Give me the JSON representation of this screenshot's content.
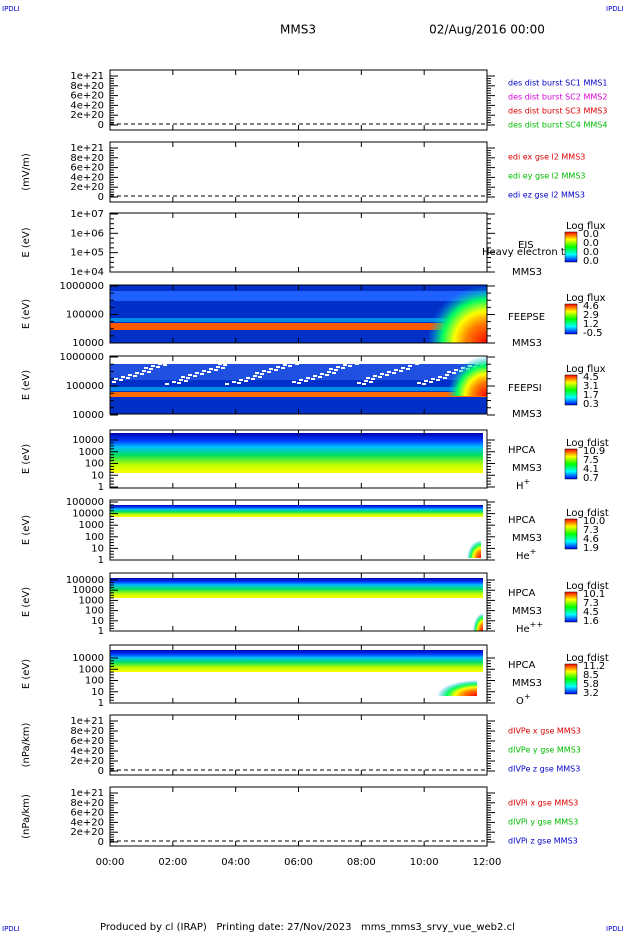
{
  "header": {
    "corner": "IPDLI",
    "satellite": "MMS3",
    "date": "02/Aug/2016 00:00"
  },
  "footer": {
    "corner": "IPDLI",
    "text": "Produced by cl (IRAP)   Printing date: 27/Nov/2023   mms_mms3_srvy_vue_web2.cl"
  },
  "xticks": [
    "00:00",
    "02:00",
    "04:00",
    "06:00",
    "08:00",
    "10:00",
    "12:00"
  ],
  "panels": [
    {
      "yticks": [
        "1e+21",
        "8e+20",
        "6e+20",
        "4e+20",
        "2e+20",
        "0"
      ],
      "legend": [
        {
          "text": "des dist burst SC1 MMS1",
          "color": "#0000cc"
        },
        {
          "text": "des dist burst SC2 MMS2",
          "color": "#dd00dd"
        },
        {
          "text": "des dist burst SC3 MMS3",
          "color": "#dd0000"
        },
        {
          "text": "des dist burst SC4 MMS4",
          "color": "#00bb00"
        }
      ]
    },
    {
      "ylabel": "(mV/m)",
      "yticks": [
        "1e+21",
        "8e+20",
        "6e+20",
        "4e+20",
        "2e+20",
        "0"
      ],
      "legend": [
        {
          "text": "edi ex gse l2 MMS3",
          "color": "#dd0000"
        },
        {
          "text": "edi ey gse l2 MMS3",
          "color": "#00bb00"
        },
        {
          "text": "edi ez gse l2 MMS3",
          "color": "#0000cc"
        }
      ]
    },
    {
      "ylabel": "E (eV)",
      "yticks": [
        "1e+07",
        "1e+06",
        "1e+05",
        "1e+04"
      ],
      "instrument": "EIS",
      "sat": "MMS3",
      "note": "Heavy electron to",
      "colorbar": {
        "title": "Log flux",
        "labels": [
          "0.0",
          "0.0",
          "0.0",
          "0.0"
        ]
      }
    },
    {
      "ylabel": "E (eV)",
      "yticks": [
        "1000000",
        "100000",
        "10000"
      ],
      "instrument": "FEEPSE",
      "sat": "MMS3",
      "colorbar": {
        "title": "Log flux",
        "labels": [
          "4.6",
          "2.9",
          "1.2",
          "-0.5"
        ]
      }
    },
    {
      "ylabel": "E (eV)",
      "yticks": [
        "1000000",
        "100000",
        "10000"
      ],
      "instrument": "FEEPSI",
      "sat": "MMS3",
      "colorbar": {
        "title": "Log flux",
        "labels": [
          "4.5",
          "3.1",
          "1.7",
          "0.3"
        ]
      }
    },
    {
      "ylabel": "E (eV)",
      "yticks": [
        "10000",
        "1000",
        "100",
        "10",
        "1"
      ],
      "instrument": "HPCA",
      "sat": "MMS3",
      "ion": {
        "name": "H",
        "charge": "+"
      },
      "colorbar": {
        "title": "Log fdist",
        "labels": [
          "10.9",
          "7.5",
          "4.1",
          "0.7"
        ]
      }
    },
    {
      "ylabel": "E (eV)",
      "yticks": [
        "100000",
        "10000",
        "1000",
        "100",
        "10",
        "1"
      ],
      "instrument": "HPCA",
      "sat": "MMS3",
      "ion": {
        "name": "He",
        "charge": "+"
      },
      "colorbar": {
        "title": "Log fdist",
        "labels": [
          "10.0",
          "7.3",
          "4.6",
          "1.9"
        ]
      }
    },
    {
      "ylabel": "E (eV)",
      "yticks": [
        "100000",
        "10000",
        "1000",
        "100",
        "10",
        "1"
      ],
      "instrument": "HPCA",
      "sat": "MMS3",
      "ion": {
        "name": "He",
        "charge": "++"
      },
      "colorbar": {
        "title": "Log fdist",
        "labels": [
          "10.1",
          "7.3",
          "4.5",
          "1.6"
        ]
      }
    },
    {
      "ylabel": "E (eV)",
      "yticks": [
        "10000",
        "1000",
        "100",
        "10",
        "1"
      ],
      "instrument": "HPCA",
      "sat": "MMS3",
      "ion": {
        "name": "O",
        "charge": "+"
      },
      "colorbar": {
        "title": "Log fdist",
        "labels": [
          "11.2",
          "8.5",
          "5.8",
          "3.2"
        ]
      }
    },
    {
      "ylabel": "(nPa/km)",
      "yticks": [
        "1e+21",
        "8e+20",
        "6e+20",
        "4e+20",
        "2e+20",
        "0"
      ],
      "legend": [
        {
          "text": "dIVPe x gse MMS3",
          "color": "#dd0000"
        },
        {
          "text": "dIVPe y gse MMS3",
          "color": "#00bb00"
        },
        {
          "text": "dIVPe z gse MMS3",
          "color": "#0000cc"
        }
      ]
    },
    {
      "ylabel": "(nPa/km)",
      "yticks": [
        "1e+21",
        "8e+20",
        "6e+20",
        "4e+20",
        "2e+20",
        "0"
      ],
      "legend": [
        {
          "text": "dIVPi x gse MMS3",
          "color": "#dd0000"
        },
        {
          "text": "dIVPi y gse MMS3",
          "color": "#00bb00"
        },
        {
          "text": "dIVPi z gse MMS3",
          "color": "#0000cc"
        }
      ]
    }
  ]
}
